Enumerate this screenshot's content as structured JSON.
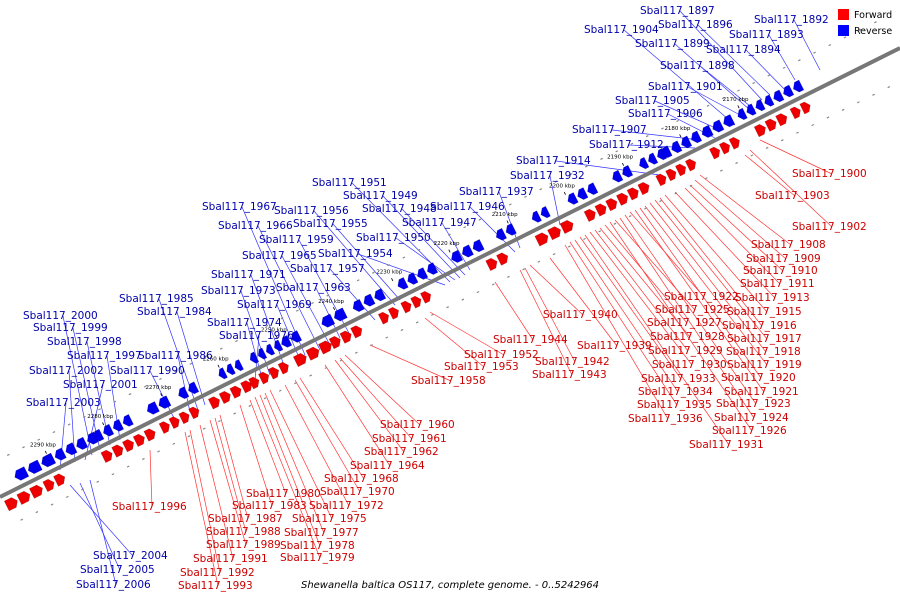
{
  "caption": "Shewanella baltica OS117, complete genome. - 0..5242964",
  "legend": {
    "forward": {
      "label": "Forward",
      "color": "#ff0000"
    },
    "reverse": {
      "label": "Reverse",
      "color": "#0000ff"
    }
  },
  "colors": {
    "forward_label": "#cc0000",
    "reverse_label": "#0000aa",
    "forward_line": "#ff3333",
    "reverse_line": "#3333ff",
    "backbone": "#777777"
  },
  "ticks": [
    "2170 kbp",
    "2180 kbp",
    "2190 kbp",
    "2200 kbp",
    "2210 kbp",
    "2220 kbp",
    "2230 kbp",
    "2240 kbp",
    "2250 kbp",
    "2260 kbp",
    "2270 kbp",
    "2280 kbp",
    "2290 kbp"
  ],
  "genes_reverse": [
    {
      "name": "Sbal117_1892"
    },
    {
      "name": "Sbal117_1893"
    },
    {
      "name": "Sbal117_1894"
    },
    {
      "name": "Sbal117_1896"
    },
    {
      "name": "Sbal117_1897"
    },
    {
      "name": "Sbal117_1898"
    },
    {
      "name": "Sbal117_1899"
    },
    {
      "name": "Sbal117_1901"
    },
    {
      "name": "Sbal117_1904"
    },
    {
      "name": "Sbal117_1905"
    },
    {
      "name": "Sbal117_1906"
    },
    {
      "name": "Sbal117_1907"
    },
    {
      "name": "Sbal117_1912"
    },
    {
      "name": "Sbal117_1914"
    },
    {
      "name": "Sbal117_1932"
    },
    {
      "name": "Sbal117_1937"
    },
    {
      "name": "Sbal117_1946"
    },
    {
      "name": "Sbal117_1947"
    },
    {
      "name": "Sbal117_1948"
    },
    {
      "name": "Sbal117_1949"
    },
    {
      "name": "Sbal117_1950"
    },
    {
      "name": "Sbal117_1951"
    },
    {
      "name": "Sbal117_1954"
    },
    {
      "name": "Sbal117_1955"
    },
    {
      "name": "Sbal117_1956"
    },
    {
      "name": "Sbal117_1957"
    },
    {
      "name": "Sbal117_1959"
    },
    {
      "name": "Sbal117_1963"
    },
    {
      "name": "Sbal117_1965"
    },
    {
      "name": "Sbal117_1966"
    },
    {
      "name": "Sbal117_1967"
    },
    {
      "name": "Sbal117_1969"
    },
    {
      "name": "Sbal117_1971"
    },
    {
      "name": "Sbal117_1973"
    },
    {
      "name": "Sbal117_1974"
    },
    {
      "name": "Sbal117_1976"
    },
    {
      "name": "Sbal117_1984"
    },
    {
      "name": "Sbal117_1985"
    },
    {
      "name": "Sbal117_1986"
    },
    {
      "name": "Sbal117_1990"
    },
    {
      "name": "Sbal117_1997"
    },
    {
      "name": "Sbal117_1998"
    },
    {
      "name": "Sbal117_1999"
    },
    {
      "name": "Sbal117_2000"
    },
    {
      "name": "Sbal117_2001"
    },
    {
      "name": "Sbal117_2002"
    },
    {
      "name": "Sbal117_2003"
    },
    {
      "name": "Sbal117_2004"
    },
    {
      "name": "Sbal117_2005"
    },
    {
      "name": "Sbal117_2006"
    }
  ],
  "genes_forward": [
    {
      "name": "Sbal117_1900"
    },
    {
      "name": "Sbal117_1902"
    },
    {
      "name": "Sbal117_1903"
    },
    {
      "name": "Sbal117_1908"
    },
    {
      "name": "Sbal117_1909"
    },
    {
      "name": "Sbal117_1910"
    },
    {
      "name": "Sbal117_1911"
    },
    {
      "name": "Sbal117_1913"
    },
    {
      "name": "Sbal117_1915"
    },
    {
      "name": "Sbal117_1916"
    },
    {
      "name": "Sbal117_1917"
    },
    {
      "name": "Sbal117_1918"
    },
    {
      "name": "Sbal117_1919"
    },
    {
      "name": "Sbal117_1920"
    },
    {
      "name": "Sbal117_1921"
    },
    {
      "name": "Sbal117_1922"
    },
    {
      "name": "Sbal117_1923"
    },
    {
      "name": "Sbal117_1924"
    },
    {
      "name": "Sbal117_1925"
    },
    {
      "name": "Sbal117_1926"
    },
    {
      "name": "Sbal117_1927"
    },
    {
      "name": "Sbal117_1928"
    },
    {
      "name": "Sbal117_1929"
    },
    {
      "name": "Sbal117_1930"
    },
    {
      "name": "Sbal117_1931"
    },
    {
      "name": "Sbal117_1933"
    },
    {
      "name": "Sbal117_1934"
    },
    {
      "name": "Sbal117_1935"
    },
    {
      "name": "Sbal117_1936"
    },
    {
      "name": "Sbal117_1939"
    },
    {
      "name": "Sbal117_1940"
    },
    {
      "name": "Sbal117_1942"
    },
    {
      "name": "Sbal117_1943"
    },
    {
      "name": "Sbal117_1944"
    },
    {
      "name": "Sbal117_1952"
    },
    {
      "name": "Sbal117_1953"
    },
    {
      "name": "Sbal117_1958"
    },
    {
      "name": "Sbal117_1960"
    },
    {
      "name": "Sbal117_1961"
    },
    {
      "name": "Sbal117_1962"
    },
    {
      "name": "Sbal117_1964"
    },
    {
      "name": "Sbal117_1968"
    },
    {
      "name": "Sbal117_1970"
    },
    {
      "name": "Sbal117_1972"
    },
    {
      "name": "Sbal117_1975"
    },
    {
      "name": "Sbal117_1977"
    },
    {
      "name": "Sbal117_1978"
    },
    {
      "name": "Sbal117_1979"
    },
    {
      "name": "Sbal117_1980"
    },
    {
      "name": "Sbal117_1983"
    },
    {
      "name": "Sbal117_1987"
    },
    {
      "name": "Sbal117_1988"
    },
    {
      "name": "Sbal117_1989"
    },
    {
      "name": "Sbal117_1991"
    },
    {
      "name": "Sbal117_1992"
    },
    {
      "name": "Sbal117_1993"
    },
    {
      "name": "Sbal117_1996"
    }
  ]
}
